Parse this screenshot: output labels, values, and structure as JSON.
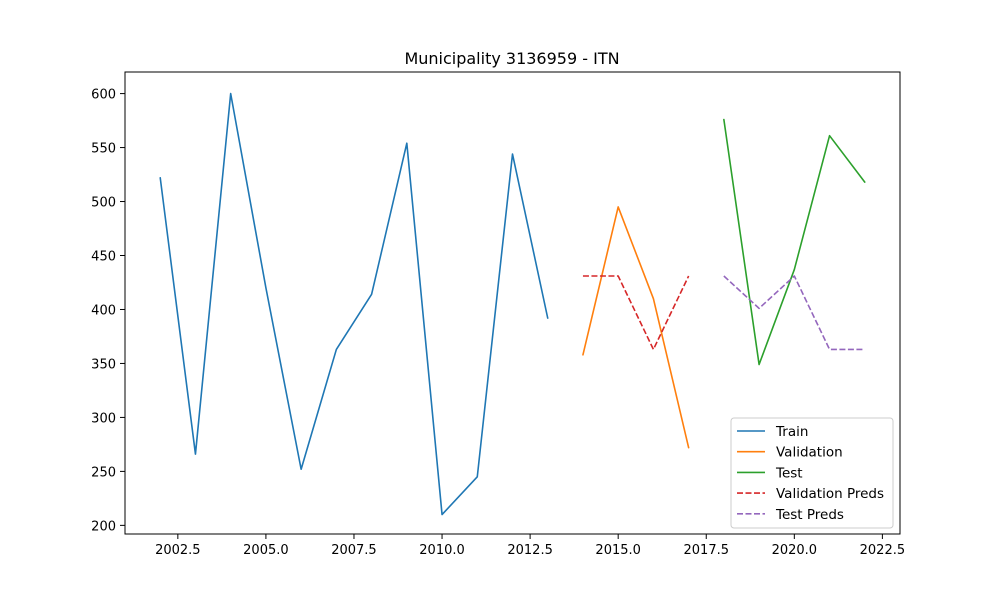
{
  "chart_data": {
    "type": "line",
    "title": "Municipality 3136959 - ITN",
    "xlabel": "",
    "ylabel": "",
    "xlim": [
      2001.0,
      2023.0
    ],
    "ylim": [
      192,
      620
    ],
    "x_ticks": [
      2002.5,
      2005.0,
      2007.5,
      2010.0,
      2012.5,
      2015.0,
      2017.5,
      2020.0,
      2022.5
    ],
    "x_tick_labels": [
      "2002.5",
      "2005.0",
      "2007.5",
      "2010.0",
      "2012.5",
      "2015.0",
      "2017.5",
      "2020.0",
      "2022.5"
    ],
    "y_ticks": [
      200,
      250,
      300,
      350,
      400,
      450,
      500,
      550,
      600
    ],
    "y_tick_labels": [
      "200",
      "250",
      "300",
      "350",
      "400",
      "450",
      "500",
      "550",
      "600"
    ],
    "grid": false,
    "legend_position": "bottom-right",
    "series": [
      {
        "name": "Train",
        "color": "#1f77b4",
        "dash": "solid",
        "x": [
          2002,
          2003,
          2004,
          2005,
          2006,
          2007,
          2008,
          2009,
          2010,
          2011,
          2012,
          2013
        ],
        "values": [
          522,
          266,
          600,
          420,
          252,
          363,
          414,
          554,
          210,
          245,
          544,
          392
        ]
      },
      {
        "name": "Validation",
        "color": "#ff7f0e",
        "dash": "solid",
        "x": [
          2014,
          2015,
          2016,
          2017
        ],
        "values": [
          358,
          495,
          410,
          272
        ]
      },
      {
        "name": "Test",
        "color": "#2ca02c",
        "dash": "solid",
        "x": [
          2018,
          2019,
          2020,
          2021,
          2022
        ],
        "values": [
          576,
          349,
          437,
          561,
          518
        ]
      },
      {
        "name": "Validation Preds",
        "color": "#d62728",
        "dash": "dashed",
        "x": [
          2014,
          2015,
          2016,
          2017
        ],
        "values": [
          431,
          431,
          363,
          431
        ]
      },
      {
        "name": "Test Preds",
        "color": "#9467bd",
        "dash": "dashed",
        "x": [
          2018,
          2019,
          2020,
          2021,
          2022
        ],
        "values": [
          431,
          401,
          431,
          363,
          363
        ]
      }
    ]
  }
}
